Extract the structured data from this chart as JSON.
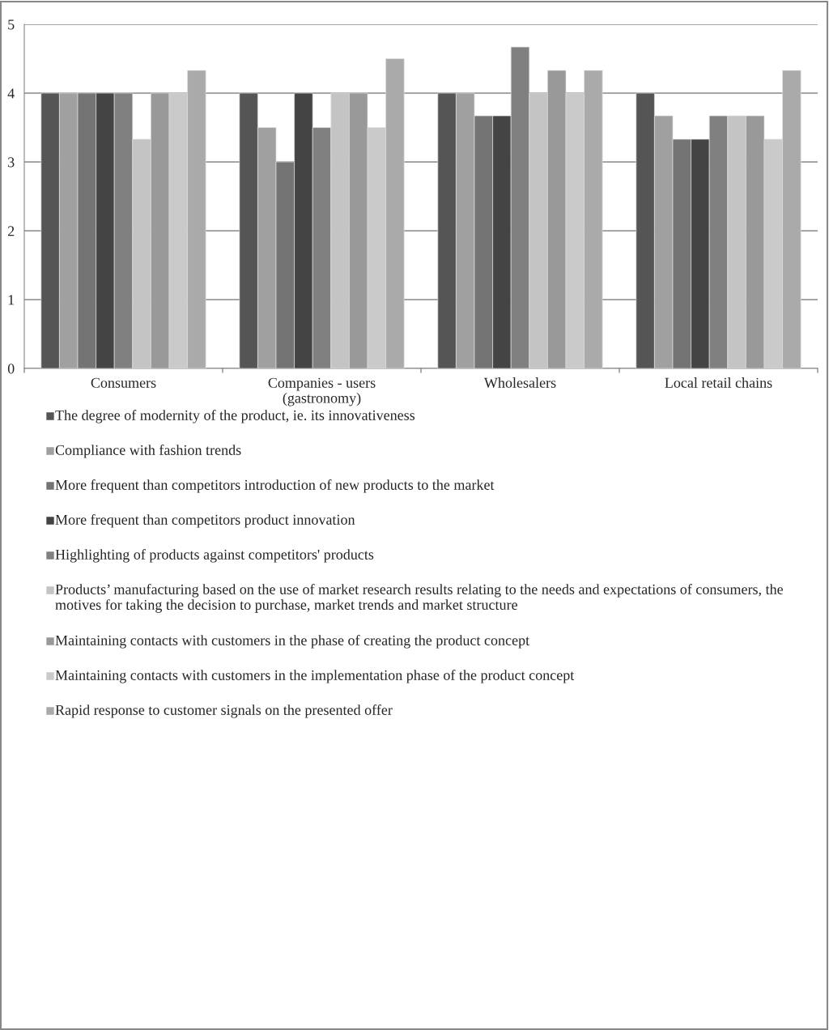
{
  "chart_data": {
    "type": "bar",
    "categories": [
      "Consumers",
      "Companies - users\n(gastronomy)",
      "Wholesalers",
      "Local retail chains"
    ],
    "series": [
      {
        "name": "The degree of modernity of the product, ie. its innovativeness",
        "color": "#555555",
        "values": [
          4,
          4,
          4,
          4
        ]
      },
      {
        "name": "Compliance with fashion trends",
        "color": "#a0a0a0",
        "values": [
          4,
          3.5,
          4,
          3.67
        ]
      },
      {
        "name": "More frequent than competitors introduction of new products to the market",
        "color": "#747474",
        "values": [
          4,
          3,
          3.67,
          3.33
        ]
      },
      {
        "name": "More frequent than competitors product innovation",
        "color": "#444444",
        "values": [
          4,
          4,
          3.67,
          3.33
        ]
      },
      {
        "name": "Highlighting of products against competitors' products",
        "color": "#808080",
        "values": [
          4,
          3.5,
          4.67,
          3.67
        ]
      },
      {
        "name": "Products’ manufacturing based on the use of market research results relating to the needs and expectations of consumers, the motives for taking the decision to purchase, market trends and market structure",
        "color": "#c4c4c4",
        "values": [
          3.33,
          4,
          4,
          3.67
        ]
      },
      {
        "name": "Maintaining contacts with customers in the phase of creating the product concept",
        "color": "#999999",
        "values": [
          4,
          4,
          4.33,
          3.67
        ]
      },
      {
        "name": "Maintaining contacts with customers in the implementation phase of the product concept",
        "color": "#cacaca",
        "values": [
          4,
          3.5,
          4,
          3.33
        ]
      },
      {
        "name": "Rapid response to customer signals on the presented offer",
        "color": "#aaaaaa",
        "values": [
          4.33,
          4.5,
          4.33,
          4.33
        ]
      }
    ],
    "ylim": [
      0,
      5
    ],
    "yticks": [
      0,
      1,
      2,
      3,
      4,
      5
    ],
    "grid": "y",
    "legend": "bottom"
  }
}
